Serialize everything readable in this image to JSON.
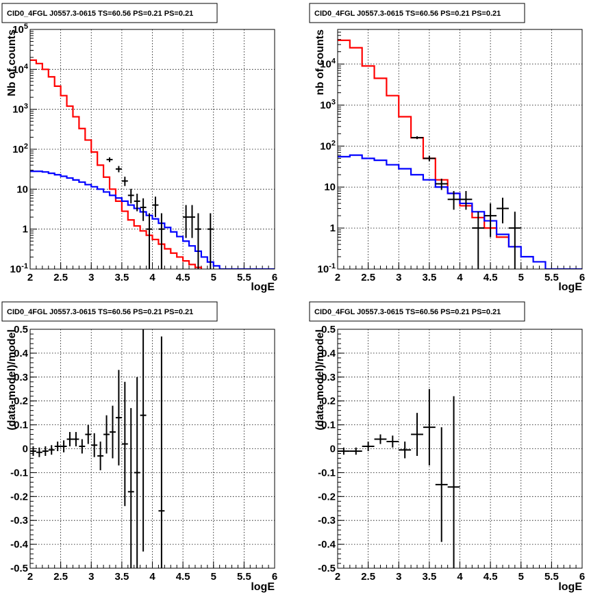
{
  "chart_data": [
    {
      "type": "line",
      "title": "CID0_4FGL J0557.3-0615 TS=60.56 PS=0.21 PS=0.21",
      "xlabel": "logE",
      "ylabel": "Nb of counts",
      "xlim": [
        2,
        6
      ],
      "ylim": [
        0.1,
        100000
      ],
      "yscale": "log",
      "grid": true,
      "x_ticks": [
        "2",
        "2.5",
        "3",
        "3.5",
        "4",
        "4.5",
        "5",
        "5.5",
        "6"
      ],
      "y_ticks": [
        "10^-1",
        "1",
        "10",
        "10^2",
        "10^3",
        "10^4",
        "10^5"
      ],
      "step_width": 0.1,
      "series": [
        {
          "color": "#ff0000",
          "kind": "step",
          "x": [
            2.0,
            2.1,
            2.2,
            2.3,
            2.4,
            2.5,
            2.6,
            2.7,
            2.8,
            2.9,
            3.0,
            3.1,
            3.2,
            3.3,
            3.4,
            3.5,
            3.6,
            3.7,
            3.8,
            3.9,
            4.0,
            4.1,
            4.2,
            4.3,
            4.4,
            4.5,
            4.6,
            4.7,
            4.8,
            4.9
          ],
          "values": [
            17000,
            14000,
            10000,
            6500,
            3800,
            2200,
            1200,
            650,
            330,
            170,
            85,
            40,
            20,
            10,
            5,
            2.8,
            1.7,
            1.2,
            0.9,
            0.7,
            0.55,
            0.42,
            0.32,
            0.25,
            0.2,
            0.16,
            0.13,
            0.11,
            0.09,
            0.08
          ]
        },
        {
          "color": "#0000ff",
          "kind": "step",
          "x": [
            2.0,
            2.1,
            2.2,
            2.3,
            2.4,
            2.5,
            2.6,
            2.7,
            2.8,
            2.9,
            3.0,
            3.1,
            3.2,
            3.3,
            3.4,
            3.5,
            3.6,
            3.7,
            3.8,
            3.9,
            4.0,
            4.1,
            4.2,
            4.3,
            4.4,
            4.5,
            4.6,
            4.7,
            4.8,
            4.9,
            5.0,
            5.1,
            5.2,
            5.3,
            5.4,
            5.5,
            5.6,
            5.7,
            5.8,
            5.9
          ],
          "values": [
            28,
            28,
            27,
            25,
            23,
            21,
            19,
            17,
            15,
            13,
            11.5,
            10,
            8.5,
            7,
            6,
            5,
            4,
            3.3,
            2.7,
            2.2,
            1.8,
            1.4,
            1.1,
            0.85,
            0.65,
            0.5,
            0.38,
            0.28,
            0.2,
            0.15,
            0.12,
            0.1,
            0.1,
            0.1,
            0.1,
            0.1,
            0.1,
            0.1,
            0.1,
            0.1
          ]
        }
      ],
      "points": {
        "color": "#000000",
        "x": [
          3.3,
          3.45,
          3.55,
          3.65,
          3.75,
          3.85,
          3.95,
          4.05,
          4.15,
          4.55,
          4.65,
          4.75,
          4.95
        ],
        "y": [
          55,
          32,
          16,
          7,
          5,
          3.5,
          1,
          4,
          1,
          2,
          2,
          1,
          1
        ],
        "xerr": 0.05,
        "yerr_low": [
          7,
          5.5,
          4,
          2.6,
          2.2,
          1.9,
          0.9,
          2,
          0.9,
          1.4,
          1.4,
          0.9,
          0.9
        ],
        "yerr_high": [
          7.5,
          6,
          4.5,
          3.2,
          2.7,
          2.4,
          1.5,
          2.5,
          1.5,
          2,
          2,
          1.5,
          1.5
        ]
      }
    },
    {
      "type": "line",
      "title": "CID0_4FGL J0557.3-0615 TS=60.56 PS=0.21 PS=0.21",
      "xlabel": "logE",
      "ylabel": "nb of counts",
      "xlim": [
        2,
        6
      ],
      "ylim": [
        0.1,
        70000
      ],
      "yscale": "log",
      "grid": true,
      "x_ticks": [
        "2",
        "2.5",
        "3",
        "3.5",
        "4",
        "4.5",
        "5",
        "5.5",
        "6"
      ],
      "y_ticks": [
        "10^-1",
        "1",
        "10",
        "10^2",
        "10^3",
        "10^4"
      ],
      "step_width": 0.2,
      "series": [
        {
          "color": "#ff0000",
          "kind": "step",
          "x": [
            2.0,
            2.2,
            2.4,
            2.6,
            2.8,
            3.0,
            3.2,
            3.4,
            3.6,
            3.8,
            4.0,
            4.2,
            4.4,
            4.6,
            4.8
          ],
          "values": [
            38000,
            25000,
            9000,
            4500,
            1700,
            520,
            160,
            50,
            15,
            7,
            3.5,
            1.8,
            1.0,
            0.6,
            0.35
          ]
        },
        {
          "color": "#0000ff",
          "kind": "step",
          "x": [
            2.0,
            2.2,
            2.4,
            2.6,
            2.8,
            3.0,
            3.2,
            3.4,
            3.6,
            3.8,
            4.0,
            4.2,
            4.4,
            4.6,
            4.8,
            5.0,
            5.2,
            5.4,
            5.6,
            5.8
          ],
          "values": [
            55,
            60,
            50,
            45,
            35,
            28,
            20,
            15,
            10,
            7,
            4,
            2.5,
            1.5,
            0.7,
            0.35,
            0.2,
            0.15,
            0.1,
            0.1,
            0.1
          ]
        }
      ],
      "points": {
        "color": "#000000",
        "x": [
          3.3,
          3.5,
          3.7,
          3.9,
          4.1,
          4.3,
          4.5,
          4.7,
          4.9
        ],
        "y": [
          160,
          50,
          12,
          5,
          5,
          1,
          2,
          3,
          1
        ],
        "xerr": 0.1,
        "yerr_low": [
          12,
          7,
          3.5,
          2.2,
          2.2,
          0.9,
          1.4,
          1.7,
          0.9
        ],
        "yerr_high": [
          13,
          8,
          4,
          3,
          3,
          1.5,
          2,
          2.5,
          1.5
        ]
      }
    },
    {
      "type": "scatter",
      "title": "CID0_4FGL J0557.3-0615 TS=60.56 PS=0.21 PS=0.21",
      "xlabel": "logE",
      "ylabel": "(data-model)/model",
      "xlim": [
        2,
        6
      ],
      "ylim": [
        -0.5,
        0.5
      ],
      "grid": true,
      "x_ticks": [
        "2",
        "2.5",
        "3",
        "3.5",
        "4",
        "4.5",
        "5",
        "5.5",
        "6"
      ],
      "y_ticks": [
        "-0.5",
        "-0.4",
        "-0.3",
        "-0.2",
        "-0.1",
        "0",
        "0.1",
        "0.2",
        "0.3",
        "0.4",
        "0.5"
      ],
      "points": {
        "color": "#000000",
        "x": [
          2.05,
          2.15,
          2.25,
          2.35,
          2.45,
          2.55,
          2.65,
          2.75,
          2.85,
          2.95,
          3.05,
          3.15,
          3.25,
          3.35,
          3.45,
          3.55,
          3.65,
          3.75,
          3.85,
          4.15
        ],
        "y": [
          -0.01,
          -0.015,
          -0.01,
          -0.005,
          0.01,
          0.01,
          0.04,
          0.04,
          0.01,
          0.06,
          0.015,
          -0.03,
          0.06,
          0.07,
          0.13,
          0.02,
          -0.18,
          -0.1,
          0.14,
          -0.26
        ],
        "xerr": 0.05,
        "yerr": [
          0.02,
          0.02,
          0.02,
          0.02,
          0.02,
          0.025,
          0.03,
          0.03,
          0.03,
          0.04,
          0.05,
          0.06,
          0.08,
          0.11,
          0.2,
          0.26,
          0.35,
          0.4,
          0.57,
          0.73
        ]
      }
    },
    {
      "type": "scatter",
      "title": "CID0_4FGL J0557.3-0615 TS=60.56 PS=0.21 PS=0.21",
      "xlabel": "logE",
      "ylabel": "(data-model)/model",
      "xlim": [
        2,
        6
      ],
      "ylim": [
        -0.5,
        0.5
      ],
      "grid": true,
      "x_ticks": [
        "2",
        "2.5",
        "3",
        "3.5",
        "4",
        "4.5",
        "5",
        "5.5",
        "6"
      ],
      "y_ticks": [
        "-0.5",
        "-0.4",
        "-0.3",
        "-0.2",
        "-0.1",
        "0",
        "0.1",
        "0.2",
        "0.3",
        "0.4",
        "0.5"
      ],
      "points": {
        "color": "#000000",
        "x": [
          2.1,
          2.3,
          2.5,
          2.7,
          2.9,
          3.1,
          3.3,
          3.5,
          3.7,
          3.9
        ],
        "y": [
          -0.01,
          -0.01,
          0.01,
          0.04,
          0.03,
          -0.005,
          0.06,
          0.09,
          -0.15,
          -0.16
        ],
        "xerr": 0.1,
        "yerr": [
          0.015,
          0.015,
          0.02,
          0.02,
          0.025,
          0.035,
          0.09,
          0.16,
          0.24,
          0.38
        ]
      }
    }
  ]
}
